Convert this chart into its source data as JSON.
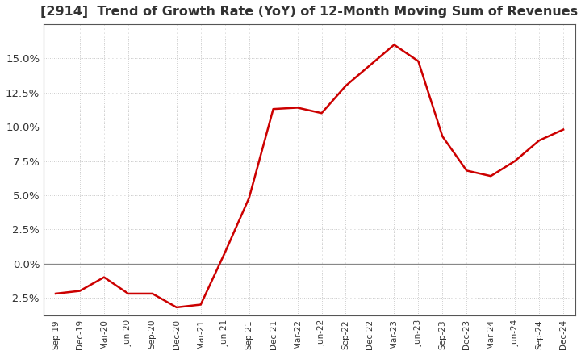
{
  "title": "[2914]  Trend of Growth Rate (YoY) of 12-Month Moving Sum of Revenues",
  "title_fontsize": 11.5,
  "title_color": "#333333",
  "line_color": "#cc0000",
  "line_width": 1.8,
  "background_color": "#ffffff",
  "grid_color": "#bbbbbb",
  "zero_line_color": "#888888",
  "ylim": [
    -0.038,
    0.175
  ],
  "yticks": [
    -0.025,
    0.0,
    0.025,
    0.05,
    0.075,
    0.1,
    0.125,
    0.15
  ],
  "x_labels": [
    "Sep-19",
    "Dec-19",
    "Mar-20",
    "Jun-20",
    "Sep-20",
    "Dec-20",
    "Mar-21",
    "Jun-21",
    "Sep-21",
    "Dec-21",
    "Mar-22",
    "Jun-22",
    "Sep-22",
    "Dec-22",
    "Mar-23",
    "Jun-23",
    "Sep-23",
    "Dec-23",
    "Mar-24",
    "Jun-24",
    "Sep-24",
    "Dec-24"
  ],
  "values": [
    -0.022,
    -0.02,
    -0.01,
    -0.022,
    -0.022,
    -0.032,
    -0.03,
    0.008,
    0.048,
    0.113,
    0.114,
    0.11,
    0.13,
    0.145,
    0.16,
    0.148,
    0.093,
    0.068,
    0.064,
    0.075,
    0.09,
    0.098
  ]
}
